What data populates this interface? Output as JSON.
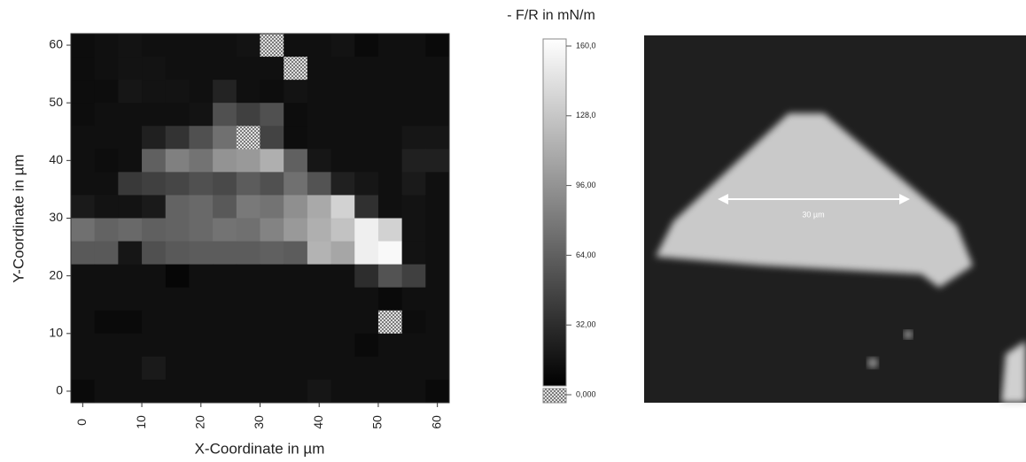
{
  "chart_data": {
    "type": "heatmap",
    "colorbar_title": "- F/R in mN/m",
    "xlabel": "X-Coordinate in µm",
    "ylabel": "Y-Coordinate in µm",
    "x": [
      0,
      4,
      8,
      12,
      16,
      20,
      24,
      28,
      32,
      36,
      40,
      44,
      48,
      52,
      56,
      60
    ],
    "y": [
      60,
      56,
      52,
      48,
      44,
      40,
      36,
      32,
      28,
      24,
      20,
      16,
      12,
      8,
      4,
      0
    ],
    "z": [
      [
        8,
        10,
        12,
        10,
        10,
        10,
        10,
        12,
        null,
        10,
        10,
        12,
        6,
        10,
        10,
        6
      ],
      [
        8,
        10,
        12,
        12,
        10,
        10,
        10,
        10,
        10,
        null,
        10,
        10,
        10,
        10,
        10,
        10
      ],
      [
        8,
        8,
        14,
        12,
        12,
        10,
        22,
        10,
        8,
        12,
        10,
        10,
        10,
        10,
        10,
        10
      ],
      [
        8,
        10,
        10,
        10,
        10,
        12,
        50,
        40,
        50,
        8,
        10,
        10,
        10,
        10,
        10,
        10
      ],
      [
        10,
        10,
        10,
        20,
        32,
        50,
        70,
        null,
        42,
        8,
        10,
        10,
        10,
        10,
        14,
        14
      ],
      [
        10,
        8,
        10,
        60,
        80,
        72,
        92,
        96,
        110,
        60,
        14,
        10,
        10,
        10,
        20,
        20
      ],
      [
        10,
        10,
        36,
        40,
        44,
        50,
        46,
        58,
        50,
        70,
        52,
        20,
        14,
        10,
        16,
        10
      ],
      [
        16,
        12,
        12,
        16,
        62,
        66,
        56,
        76,
        72,
        90,
        106,
        132,
        30,
        10,
        12,
        10
      ],
      [
        70,
        62,
        66,
        60,
        62,
        66,
        72,
        70,
        82,
        96,
        110,
        122,
        150,
        132,
        12,
        10
      ],
      [
        56,
        56,
        14,
        50,
        56,
        58,
        58,
        58,
        60,
        58,
        112,
        104,
        150,
        156,
        12,
        10
      ],
      [
        10,
        10,
        10,
        10,
        4,
        10,
        10,
        10,
        10,
        10,
        10,
        10,
        28,
        52,
        40,
        10
      ],
      [
        10,
        10,
        10,
        10,
        10,
        10,
        10,
        10,
        10,
        10,
        10,
        10,
        10,
        6,
        10,
        10
      ],
      [
        10,
        6,
        6,
        10,
        10,
        10,
        10,
        10,
        10,
        10,
        10,
        10,
        10,
        null,
        8,
        10
      ],
      [
        10,
        10,
        10,
        10,
        10,
        10,
        10,
        10,
        10,
        10,
        10,
        10,
        6,
        10,
        10,
        10
      ],
      [
        10,
        10,
        10,
        16,
        10,
        10,
        10,
        10,
        10,
        10,
        10,
        10,
        10,
        10,
        10,
        10
      ],
      [
        6,
        10,
        10,
        10,
        10,
        10,
        10,
        10,
        10,
        10,
        14,
        10,
        10,
        10,
        10,
        6
      ]
    ],
    "xlim": [
      -2,
      62
    ],
    "ylim": [
      -2,
      62
    ],
    "xticks": [
      0,
      10,
      20,
      30,
      40,
      50,
      60
    ],
    "yticks": [
      0,
      10,
      20,
      30,
      40,
      50,
      60
    ],
    "zlim": [
      0,
      160
    ],
    "zticks": [
      {
        "value": 0,
        "label": "0,000"
      },
      {
        "value": 32,
        "label": "32,00"
      },
      {
        "value": 64,
        "label": "64,00"
      },
      {
        "value": 96,
        "label": "96,00"
      },
      {
        "value": 128,
        "label": "128,0"
      },
      {
        "value": 160,
        "label": "160,0"
      }
    ],
    "image_annotation": "30 µm"
  }
}
